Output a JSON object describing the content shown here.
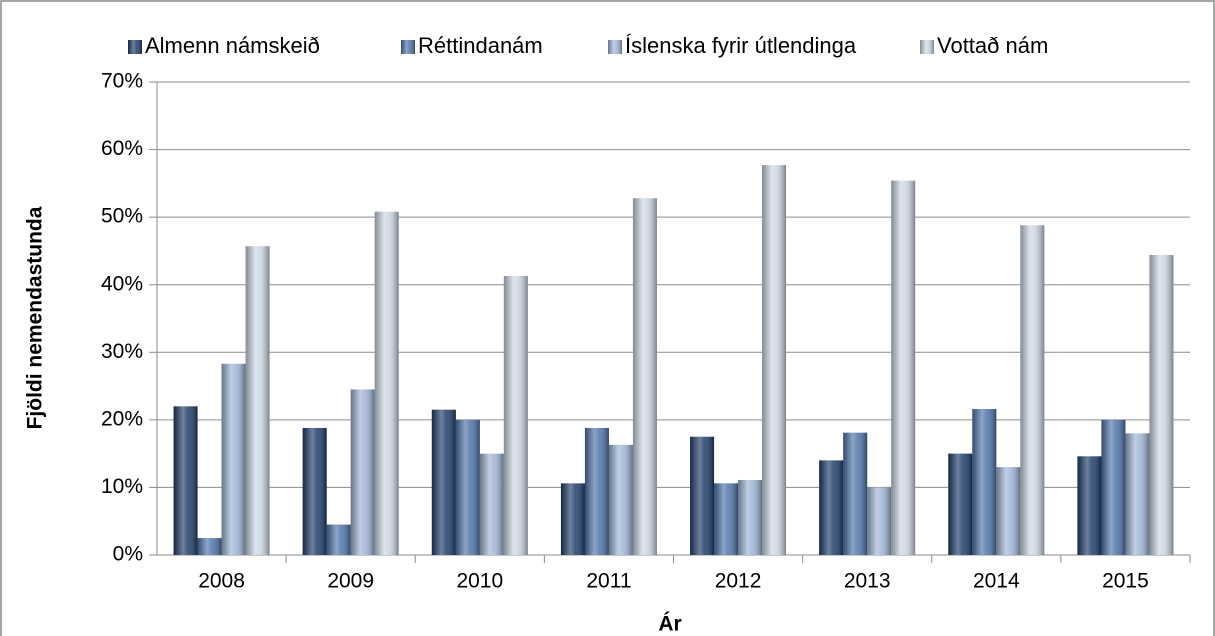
{
  "chart_data": {
    "type": "bar",
    "x_label": "Ár",
    "y_label": "Fjöldi nemendastunda",
    "categories": [
      "2008",
      "2009",
      "2010",
      "2011",
      "2012",
      "2013",
      "2014",
      "2015"
    ],
    "series": [
      {
        "name": "Almenn námskeið",
        "color": "#1f3d6b",
        "values": [
          22.0,
          18.8,
          21.5,
          10.6,
          17.5,
          14.0,
          15.0,
          14.6
        ]
      },
      {
        "name": "Réttindanám",
        "color": "#4f74aa",
        "values": [
          2.5,
          4.5,
          20.0,
          18.8,
          10.6,
          18.1,
          21.6,
          20.0
        ]
      },
      {
        "name": "Íslenska fyrir útlendinga",
        "color": "#9fb4d4",
        "values": [
          28.3,
          24.5,
          15.0,
          16.3,
          11.1,
          10.0,
          13.0,
          18.0
        ]
      },
      {
        "name": "Vottað nám",
        "color": "#ccd5e2",
        "values": [
          45.7,
          50.8,
          41.3,
          52.8,
          57.7,
          55.4,
          48.8,
          44.4
        ]
      }
    ],
    "ylim": [
      0,
      70
    ],
    "yticks": [
      {
        "value": 0,
        "label": "0%"
      },
      {
        "value": 10,
        "label": "10%"
      },
      {
        "value": 20,
        "label": "20%"
      },
      {
        "value": 30,
        "label": "30%"
      },
      {
        "value": 40,
        "label": "40%"
      },
      {
        "value": 50,
        "label": "50%"
      },
      {
        "value": 60,
        "label": "60%"
      },
      {
        "value": 70,
        "label": "70%"
      }
    ],
    "grid": true,
    "legend": "top"
  }
}
